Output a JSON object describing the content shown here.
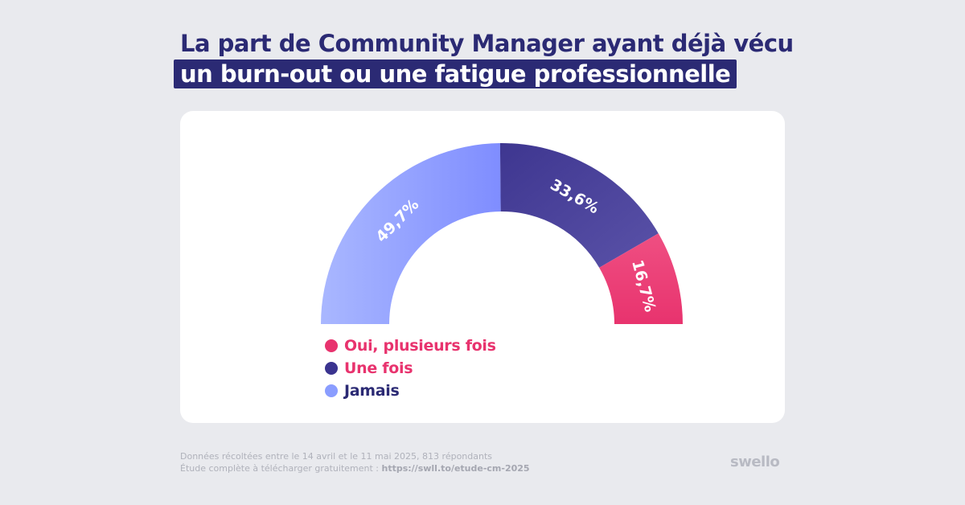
{
  "title": {
    "line1": "La part de Community Manager ayant déjà vécu",
    "line2": "un burn-out ou une fatigue professionnelle"
  },
  "chart_data": {
    "type": "pie",
    "variant": "half-donut",
    "title": "La part de Community Manager ayant déjà vécu un burn-out ou une fatigue professionnelle",
    "segments": [
      {
        "name": "Jamais",
        "value": 49.7,
        "label": "49,7%",
        "color": "#8c9cff"
      },
      {
        "name": "Une fois",
        "value": 33.6,
        "label": "33,6%",
        "color": "#4a4299"
      },
      {
        "name": "Oui, plusieurs fois",
        "value": 16.7,
        "label": "16,7%",
        "color": "#ec3d78"
      }
    ],
    "legend": [
      {
        "label": "Oui, plusieurs fois",
        "dot_color": "#e8336e",
        "text_color": "#e8336e"
      },
      {
        "label": "Une fois",
        "dot_color": "#3a338f",
        "text_color": "#e8336e"
      },
      {
        "label": "Jamais",
        "dot_color": "#8a9dff",
        "text_color": "#2b2a74"
      }
    ],
    "legend_placement": "bottom-left"
  },
  "footer": {
    "line1": "Données récoltées entre le 14 avril et le 11 mai 2025, 813 répondants",
    "line2_prefix": "Étude complète à télécharger gratuitement : ",
    "link": "https://swll.to/etude-cm-2025"
  },
  "brand": "swello"
}
